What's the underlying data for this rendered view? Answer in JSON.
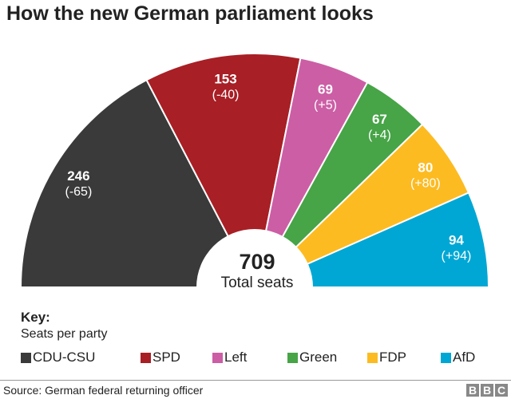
{
  "chart_data": {
    "type": "pie",
    "variant": "semicircle-donut",
    "title": "How the new German parliament looks",
    "total": 709,
    "total_label": "Total seats",
    "parties": [
      {
        "name": "CDU-CSU",
        "seats": 246,
        "change": "(-65)",
        "color": "#3a3a3a"
      },
      {
        "name": "SPD",
        "seats": 153,
        "change": "(-40)",
        "color": "#a81f25"
      },
      {
        "name": "Left",
        "seats": 69,
        "change": "(+5)",
        "color": "#cc5ea5"
      },
      {
        "name": "Green",
        "seats": 67,
        "change": "(+4)",
        "color": "#47a447"
      },
      {
        "name": "FDP",
        "seats": 80,
        "change": "(+80)",
        "color": "#fdbb22"
      },
      {
        "name": "AfD",
        "seats": 94,
        "change": "(+94)",
        "color": "#00a7d4"
      }
    ],
    "key_title": "Key:",
    "key_subtitle": "Seats per party"
  },
  "footer": {
    "source": "Source: German federal returning officer",
    "logo": [
      "B",
      "B",
      "C"
    ]
  }
}
